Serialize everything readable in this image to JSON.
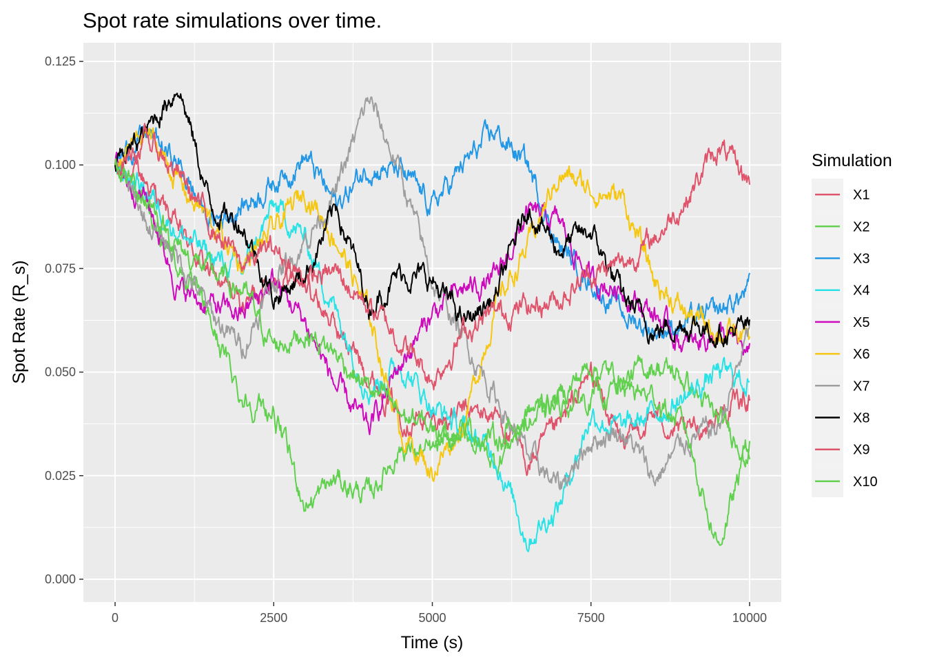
{
  "chart_data": {
    "type": "line",
    "title": "Spot rate simulations over time.",
    "xlabel": "Time (s)",
    "ylabel": "Spot Rate (R_s)",
    "xlim": [
      -500,
      10500
    ],
    "ylim": [
      -0.0055,
      0.1295
    ],
    "x_ticks": [
      0,
      2500,
      5000,
      7500,
      10000
    ],
    "x_tick_labels": [
      "0",
      "2500",
      "5000",
      "7500",
      "10000"
    ],
    "y_ticks": [
      0,
      0.025,
      0.05,
      0.075,
      0.1,
      0.125
    ],
    "y_tick_labels": [
      "0.000",
      "0.025",
      "0.050",
      "0.075",
      "0.100",
      "0.125"
    ],
    "grid": true,
    "legend_title": "Simulation",
    "legend_position": "right",
    "x": [
      0,
      500,
      1000,
      1500,
      2000,
      2500,
      3000,
      3500,
      4000,
      4500,
      5000,
      5500,
      6000,
      6500,
      7000,
      7500,
      8000,
      8500,
      9000,
      9500,
      10000
    ],
    "series": [
      {
        "name": "X1",
        "color": "#DF536B",
        "values": [
          0.1,
          0.096,
          0.084,
          0.074,
          0.066,
          0.074,
          0.072,
          0.06,
          0.05,
          0.04,
          0.038,
          0.04,
          0.04,
          0.028,
          0.036,
          0.05,
          0.032,
          0.04,
          0.034,
          0.04,
          0.044
        ]
      },
      {
        "name": "X2",
        "color": "#61D04F",
        "values": [
          0.1,
          0.09,
          0.076,
          0.062,
          0.044,
          0.04,
          0.018,
          0.024,
          0.02,
          0.032,
          0.03,
          0.036,
          0.028,
          0.04,
          0.044,
          0.052,
          0.048,
          0.052,
          0.048,
          0.038,
          0.032
        ]
      },
      {
        "name": "X3",
        "color": "#2297E6",
        "values": [
          0.1,
          0.108,
          0.1,
          0.086,
          0.09,
          0.096,
          0.102,
          0.09,
          0.1,
          0.098,
          0.09,
          0.1,
          0.108,
          0.1,
          0.08,
          0.072,
          0.064,
          0.06,
          0.062,
          0.064,
          0.07
        ]
      },
      {
        "name": "X4",
        "color": "#28E2E5",
        "values": [
          0.1,
          0.094,
          0.084,
          0.078,
          0.074,
          0.09,
          0.082,
          0.064,
          0.046,
          0.052,
          0.042,
          0.036,
          0.03,
          0.01,
          0.018,
          0.04,
          0.036,
          0.04,
          0.044,
          0.05,
          0.048
        ]
      },
      {
        "name": "X5",
        "color": "#CD0BBC",
        "values": [
          0.1,
          0.092,
          0.07,
          0.066,
          0.064,
          0.072,
          0.062,
          0.046,
          0.036,
          0.052,
          0.064,
          0.07,
          0.072,
          0.088,
          0.086,
          0.072,
          0.07,
          0.064,
          0.056,
          0.06,
          0.054
        ]
      },
      {
        "name": "X6",
        "color": "#F5C710",
        "values": [
          0.1,
          0.108,
          0.096,
          0.086,
          0.076,
          0.084,
          0.094,
          0.082,
          0.064,
          0.036,
          0.026,
          0.038,
          0.066,
          0.08,
          0.098,
          0.094,
          0.092,
          0.072,
          0.064,
          0.06,
          0.058
        ]
      },
      {
        "name": "X7",
        "color": "#9E9E9E",
        "values": [
          0.1,
          0.086,
          0.078,
          0.064,
          0.056,
          0.072,
          0.082,
          0.094,
          0.116,
          0.098,
          0.072,
          0.058,
          0.044,
          0.03,
          0.022,
          0.034,
          0.036,
          0.024,
          0.034,
          0.036,
          0.06
        ]
      },
      {
        "name": "X8",
        "color": "#000000",
        "values": [
          0.1,
          0.108,
          0.12,
          0.09,
          0.086,
          0.068,
          0.074,
          0.09,
          0.066,
          0.074,
          0.072,
          0.062,
          0.068,
          0.09,
          0.08,
          0.084,
          0.068,
          0.06,
          0.062,
          0.06,
          0.06
        ]
      },
      {
        "name": "X9",
        "color": "#DF536B",
        "values": [
          0.1,
          0.106,
          0.098,
          0.086,
          0.076,
          0.08,
          0.072,
          0.074,
          0.066,
          0.058,
          0.048,
          0.06,
          0.064,
          0.066,
          0.068,
          0.074,
          0.076,
          0.082,
          0.092,
          0.104,
          0.096
        ]
      },
      {
        "name": "X10",
        "color": "#61D04F",
        "values": [
          0.1,
          0.092,
          0.08,
          0.074,
          0.07,
          0.056,
          0.06,
          0.054,
          0.046,
          0.04,
          0.036,
          0.036,
          0.034,
          0.038,
          0.042,
          0.044,
          0.046,
          0.044,
          0.036,
          0.008,
          0.032
        ]
      }
    ]
  }
}
